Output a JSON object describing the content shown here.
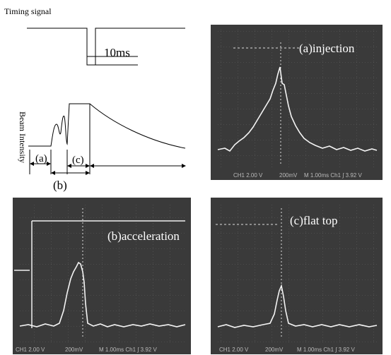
{
  "timing_panel": {
    "title": "Timing signal",
    "pulse_label": "10ms",
    "y_label": "Beam Intensity",
    "intervals": [
      "(a)",
      "(b)",
      "(c)"
    ]
  },
  "scopes": [
    {
      "label": "(a)injection",
      "footer": [
        "CH1 2.00 V",
        "200mV",
        "M 1.00ms Ch1 ∫ 3.92 V"
      ]
    },
    {
      "label": "(b)acceleration",
      "footer": [
        "CH1 2.00 V",
        "200mV",
        "M 1.00ms Ch1 ∫ 3.92 V"
      ]
    },
    {
      "label": "(c)flat top",
      "footer": [
        "CH1 2.00 V",
        "200mV",
        "M 1.00ms Ch1 ∫ 3.92 V"
      ]
    }
  ]
}
